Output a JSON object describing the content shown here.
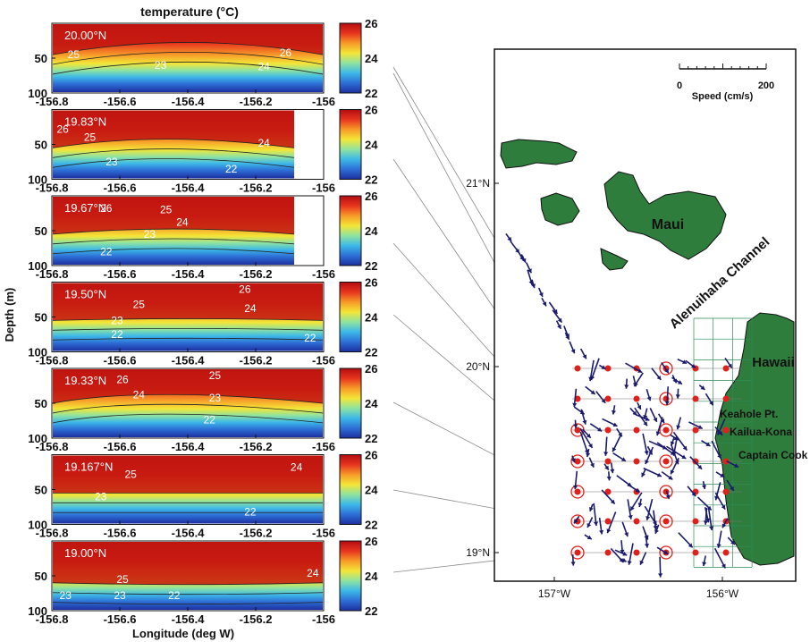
{
  "figure": {
    "title": "temperature (°C)",
    "ylabel": "Depth (m)",
    "xlabel": "Longitude (deg W)"
  },
  "colorbar": {
    "ticks": [
      "26",
      "24",
      "22"
    ],
    "colors": [
      "#1d2fa0",
      "#2d6fd6",
      "#3db8e8",
      "#8fe3a0",
      "#f4e637",
      "#f79a28",
      "#e8341e",
      "#b30d10"
    ]
  },
  "map": {
    "lat_labels": [
      "21°N",
      "20°N",
      "19°N"
    ],
    "lon_labels": [
      "157°W",
      "156°W"
    ],
    "scale": {
      "ticks": [
        "0",
        "200"
      ],
      "label": "Speed (cm/s)"
    },
    "place_labels": [
      "Maui",
      "Alenuihaha Channel",
      "Hawaii",
      "Keahole Pt.",
      "Kailua-Kona",
      "Captain Cook"
    ],
    "colors": {
      "land": "#2e7d3c",
      "station": "#e0201a",
      "arrow": "#1b1b6b"
    }
  },
  "chart_data": [
    {
      "type": "heatmap",
      "panel_label": "20.00°N",
      "x": [
        -156.8,
        -156.6,
        -156.4,
        -156.2,
        -156
      ],
      "y_ticks": [
        50,
        100
      ],
      "contour_labels": [
        "25",
        "23",
        "24",
        "26"
      ],
      "xlim": [
        -156.8,
        -156
      ],
      "ylim": [
        100,
        0
      ]
    },
    {
      "type": "heatmap",
      "panel_label": "19.83°N",
      "x": [
        -156.8,
        -156.6,
        -156.4,
        -156.2,
        -156
      ],
      "y_ticks": [
        50,
        100
      ],
      "contour_labels": [
        "26",
        "25",
        "23",
        "24",
        "22"
      ],
      "xlim": [
        -156.8,
        -156
      ],
      "ylim": [
        100,
        0
      ]
    },
    {
      "type": "heatmap",
      "panel_label": "19.67°N",
      "x": [
        -156.8,
        -156.6,
        -156.4,
        -156.2,
        -156
      ],
      "y_ticks": [
        50,
        100
      ],
      "contour_labels": [
        "26",
        "25",
        "24",
        "23",
        "22"
      ],
      "xlim": [
        -156.8,
        -156
      ],
      "ylim": [
        100,
        0
      ]
    },
    {
      "type": "heatmap",
      "panel_label": "19.50°N",
      "x": [
        -156.8,
        -156.6,
        -156.4,
        -156.2,
        -156
      ],
      "y_ticks": [
        50,
        100
      ],
      "contour_labels": [
        "25",
        "23",
        "22",
        "26",
        "24",
        "22"
      ],
      "xlim": [
        -156.8,
        -156
      ],
      "ylim": [
        100,
        0
      ]
    },
    {
      "type": "heatmap",
      "panel_label": "19.33°N",
      "x": [
        -156.8,
        -156.6,
        -156.4,
        -156.2,
        -156
      ],
      "y_ticks": [
        50,
        100
      ],
      "contour_labels": [
        "26",
        "24",
        "25",
        "23",
        "22"
      ],
      "xlim": [
        -156.8,
        -156
      ],
      "ylim": [
        100,
        0
      ]
    },
    {
      "type": "heatmap",
      "panel_label": "19.167°N",
      "x": [
        -156.8,
        -156.6,
        -156.4,
        -156.2,
        -156
      ],
      "y_ticks": [
        50,
        100
      ],
      "contour_labels": [
        "25",
        "23",
        "24",
        "22"
      ],
      "xlim": [
        -156.8,
        -156
      ],
      "ylim": [
        100,
        0
      ]
    },
    {
      "type": "heatmap",
      "panel_label": "19.00°N",
      "x": [
        -156.8,
        -156.6,
        -156.4,
        -156.2,
        -156
      ],
      "y_ticks": [
        50,
        100
      ],
      "contour_labels": [
        "25",
        "23",
        "23",
        "22",
        "24"
      ],
      "xlim": [
        -156.8,
        -156
      ],
      "ylim": [
        100,
        0
      ]
    }
  ]
}
